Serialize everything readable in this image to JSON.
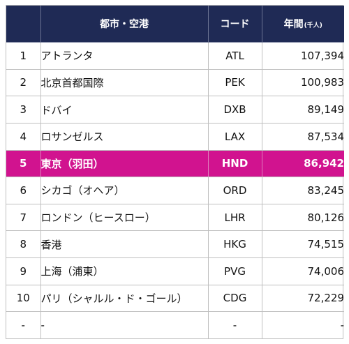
{
  "table": {
    "header": {
      "rank": "",
      "city": "都市・空港",
      "code": "コード",
      "passengers": "年間",
      "passengers_unit": "(千人)"
    },
    "highlight_color": "#d1138f",
    "header_color": "#1f2a55",
    "rows": [
      {
        "rank": "1",
        "city": "アトランタ",
        "code": "ATL",
        "passengers": "107,394"
      },
      {
        "rank": "2",
        "city": "北京首都国際",
        "code": "PEK",
        "passengers": "100,983"
      },
      {
        "rank": "3",
        "city": "ドバイ",
        "code": "DXB",
        "passengers": "89,149"
      },
      {
        "rank": "4",
        "city": "ロサンゼルス",
        "code": "LAX",
        "passengers": "87,534"
      },
      {
        "rank": "5",
        "city": "東京（羽田）",
        "code": "HND",
        "passengers": "86,942",
        "highlight": true
      },
      {
        "rank": "6",
        "city": "シカゴ（オヘア）",
        "code": "ORD",
        "passengers": "83,245"
      },
      {
        "rank": "7",
        "city": "ロンドン（ヒースロー）",
        "code": "LHR",
        "passengers": "80,126"
      },
      {
        "rank": "8",
        "city": "香港",
        "code": "HKG",
        "passengers": "74,515"
      },
      {
        "rank": "9",
        "city": "上海（浦東）",
        "code": "PVG",
        "passengers": "74,006"
      },
      {
        "rank": "10",
        "city": "パリ（シャルル・ド・ゴール）",
        "code": "CDG",
        "passengers": "72,229"
      },
      {
        "rank": "-",
        "city": "-",
        "code": "-",
        "passengers": "-"
      }
    ]
  }
}
